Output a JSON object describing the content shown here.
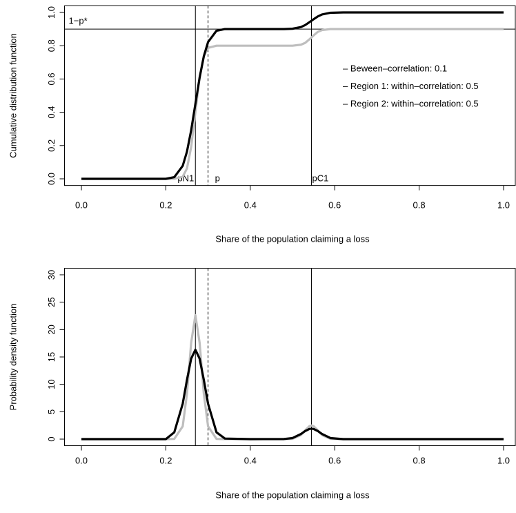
{
  "chart_data": [
    {
      "type": "line",
      "x_label": "Share of the population claiming a loss",
      "y_label": "Cumulative distribution function",
      "x": [
        0,
        0.1,
        0.2,
        0.22,
        0.24,
        0.25,
        0.26,
        0.27,
        0.28,
        0.29,
        0.3,
        0.32,
        0.34,
        0.4,
        0.48,
        0.5,
        0.52,
        0.53,
        0.54,
        0.545,
        0.55,
        0.56,
        0.57,
        0.59,
        0.62,
        0.7,
        1
      ],
      "series": [
        {
          "color": "#bebebe",
          "values": [
            0,
            0,
            0,
            0,
            0.013,
            0.062,
            0.191,
            0.4,
            0.609,
            0.738,
            0.787,
            0.8,
            0.8,
            0.8,
            0.8,
            0.8,
            0.806,
            0.817,
            0.838,
            0.85,
            0.862,
            0.883,
            0.894,
            0.9,
            0.9,
            0.9,
            0.9
          ]
        },
        {
          "color": "#000000",
          "values": [
            0,
            0,
            0,
            0.01,
            0.078,
            0.163,
            0.292,
            0.45,
            0.608,
            0.737,
            0.822,
            0.89,
            0.9,
            0.9,
            0.9,
            0.902,
            0.912,
            0.924,
            0.941,
            0.95,
            0.959,
            0.976,
            0.988,
            0.998,
            1,
            1,
            1
          ]
        }
      ],
      "xlim": [
        0,
        1
      ],
      "ylim": [
        0,
        1
      ],
      "xticks": [
        {
          "value": 0,
          "label": "0.0"
        },
        {
          "value": 0.2,
          "label": "0.2"
        },
        {
          "value": 0.4,
          "label": "0.4"
        },
        {
          "value": 0.6,
          "label": "0.6"
        },
        {
          "value": 0.8,
          "label": "0.8"
        },
        {
          "value": 1,
          "label": "1.0"
        }
      ],
      "yticks": [
        {
          "value": 0,
          "label": "0.0"
        },
        {
          "value": 0.2,
          "label": "0.2"
        },
        {
          "value": 0.4,
          "label": "0.4"
        },
        {
          "value": 0.6,
          "label": "0.6"
        },
        {
          "value": 0.8,
          "label": "0.8"
        },
        {
          "value": 1,
          "label": "1.0"
        }
      ],
      "vlines": [
        {
          "value": 0.27,
          "label": "pN1",
          "dashed": false
        },
        {
          "value": 0.3,
          "label": "p",
          "dashed": true
        },
        {
          "value": 0.545,
          "label": "pC1",
          "dashed": false
        }
      ],
      "hlines": [
        {
          "value": 0.9,
          "label": "1−p*"
        }
      ],
      "legend_text": [
        "– Beween–correlation: 0.1",
        "– Region 1: within–correlation: 0.5",
        "– Region 2: within–correlation: 0.5"
      ]
    },
    {
      "type": "line",
      "x_label": "Share of the population claiming a loss",
      "y_label": "Probability density function",
      "x": [
        0,
        0.1,
        0.2,
        0.22,
        0.24,
        0.25,
        0.26,
        0.27,
        0.28,
        0.29,
        0.3,
        0.32,
        0.34,
        0.4,
        0.48,
        0.5,
        0.52,
        0.53,
        0.54,
        0.545,
        0.55,
        0.56,
        0.57,
        0.59,
        0.62,
        0.7,
        1
      ],
      "series": [
        {
          "color": "#bebebe",
          "values": [
            0,
            0,
            0,
            0.04,
            2.34,
            8.27,
            17.6,
            22.63,
            17.6,
            8.27,
            2.34,
            0.04,
            0,
            0,
            0,
            0.05,
            0.74,
            1.6,
            2.37,
            2.49,
            2.37,
            1.6,
            0.74,
            0.05,
            0,
            0,
            0
          ]
        },
        {
          "color": "#000000",
          "values": [
            0,
            0,
            0,
            1.24,
            6.47,
            10.8,
            14.7,
            16.32,
            14.7,
            10.8,
            6.47,
            1.24,
            0.1,
            0,
            0.02,
            0.19,
            0.94,
            1.47,
            1.85,
            1.9,
            1.85,
            1.47,
            0.94,
            0.19,
            0,
            0,
            0
          ]
        }
      ],
      "xlim": [
        0,
        1
      ],
      "ylim": [
        0,
        30
      ],
      "xticks": [
        {
          "value": 0,
          "label": "0.0"
        },
        {
          "value": 0.2,
          "label": "0.2"
        },
        {
          "value": 0.4,
          "label": "0.4"
        },
        {
          "value": 0.6,
          "label": "0.6"
        },
        {
          "value": 0.8,
          "label": "0.8"
        },
        {
          "value": 1,
          "label": "1.0"
        }
      ],
      "yticks": [
        0,
        5,
        10,
        15,
        20,
        25,
        30
      ],
      "vlines": [
        {
          "value": 0.27,
          "dashed": false
        },
        {
          "value": 0.3,
          "dashed": true
        },
        {
          "value": 0.545,
          "dashed": false
        }
      ]
    }
  ]
}
